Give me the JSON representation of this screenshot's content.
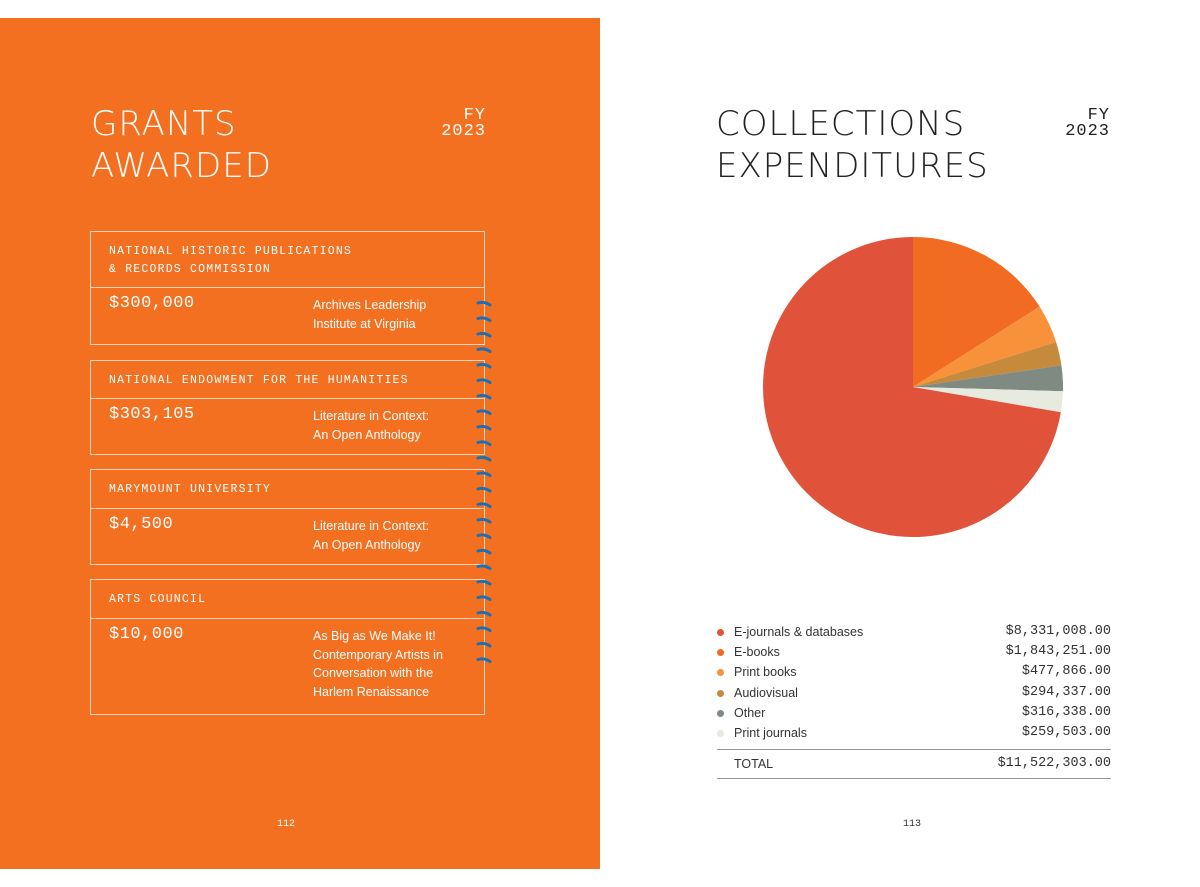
{
  "left_page": {
    "title_line1": "GRANTS",
    "title_line2": "AWARDED",
    "fy_label": "FY",
    "fy_year": "2023",
    "page_number": "112",
    "grants": [
      {
        "funder_line1": "NATIONAL HISTORIC PUBLICATIONS",
        "funder_line2": "& RECORDS COMMISSION",
        "amount": "$300,000",
        "project": [
          "Archives Leadership",
          "Institute at Virginia"
        ]
      },
      {
        "funder_line1": "NATIONAL ENDOWMENT FOR THE HUMANITIES",
        "funder_line2": "",
        "amount": "$303,105",
        "project": [
          "Literature in Context:",
          "An Open Anthology"
        ]
      },
      {
        "funder_line1": "MARYMOUNT UNIVERSITY",
        "funder_line2": "",
        "amount": "$4,500",
        "project": [
          "Literature in Context:",
          "An Open Anthology"
        ]
      },
      {
        "funder_line1": "ARTS COUNCIL",
        "funder_line2": "",
        "amount": "$10,000",
        "project": [
          "As Big as We Make It!",
          "Contemporary Artists in",
          "Conversation with the",
          "Harlem Renaissance"
        ]
      }
    ],
    "colors": {
      "background": "#F37021",
      "binding_ticks": "#1B6FB5"
    }
  },
  "right_page": {
    "title_line1": "COLLECTIONS",
    "title_line2": "EXPENDITURES",
    "fy_label": "FY",
    "fy_year": "2023",
    "page_number": "113",
    "total_label": "TOTAL",
    "total_value": "$11,522,303.00"
  },
  "chart_data": {
    "type": "pie",
    "title": "Collections Expenditures FY 2023",
    "legend_placement": "bottom",
    "categories": [
      "E-books",
      "Print books",
      "Audiovisual",
      "Other",
      "Print journals",
      "E-journals & databases"
    ],
    "values": [
      1843251,
      477866,
      294337,
      316338,
      259503,
      8331008
    ],
    "colors": [
      "#F26B22",
      "#F7923A",
      "#C58A3C",
      "#7E8A82",
      "#E6EADF",
      "#E0533A"
    ],
    "legend": [
      {
        "label": "E-journals & databases",
        "value": "$8,331,008.00",
        "color": "#E0533A"
      },
      {
        "label": "E-books",
        "value": "$1,843,251.00",
        "color": "#F26B22"
      },
      {
        "label": "Print books",
        "value": "$477,866.00",
        "color": "#F7923A"
      },
      {
        "label": "Audiovisual",
        "value": "$294,337.00",
        "color": "#C58A3C"
      },
      {
        "label": "Other",
        "value": "$316,338.00",
        "color": "#7E8A82"
      },
      {
        "label": "Print journals",
        "value": "$259,503.00",
        "color": "#E6EADF"
      }
    ]
  }
}
